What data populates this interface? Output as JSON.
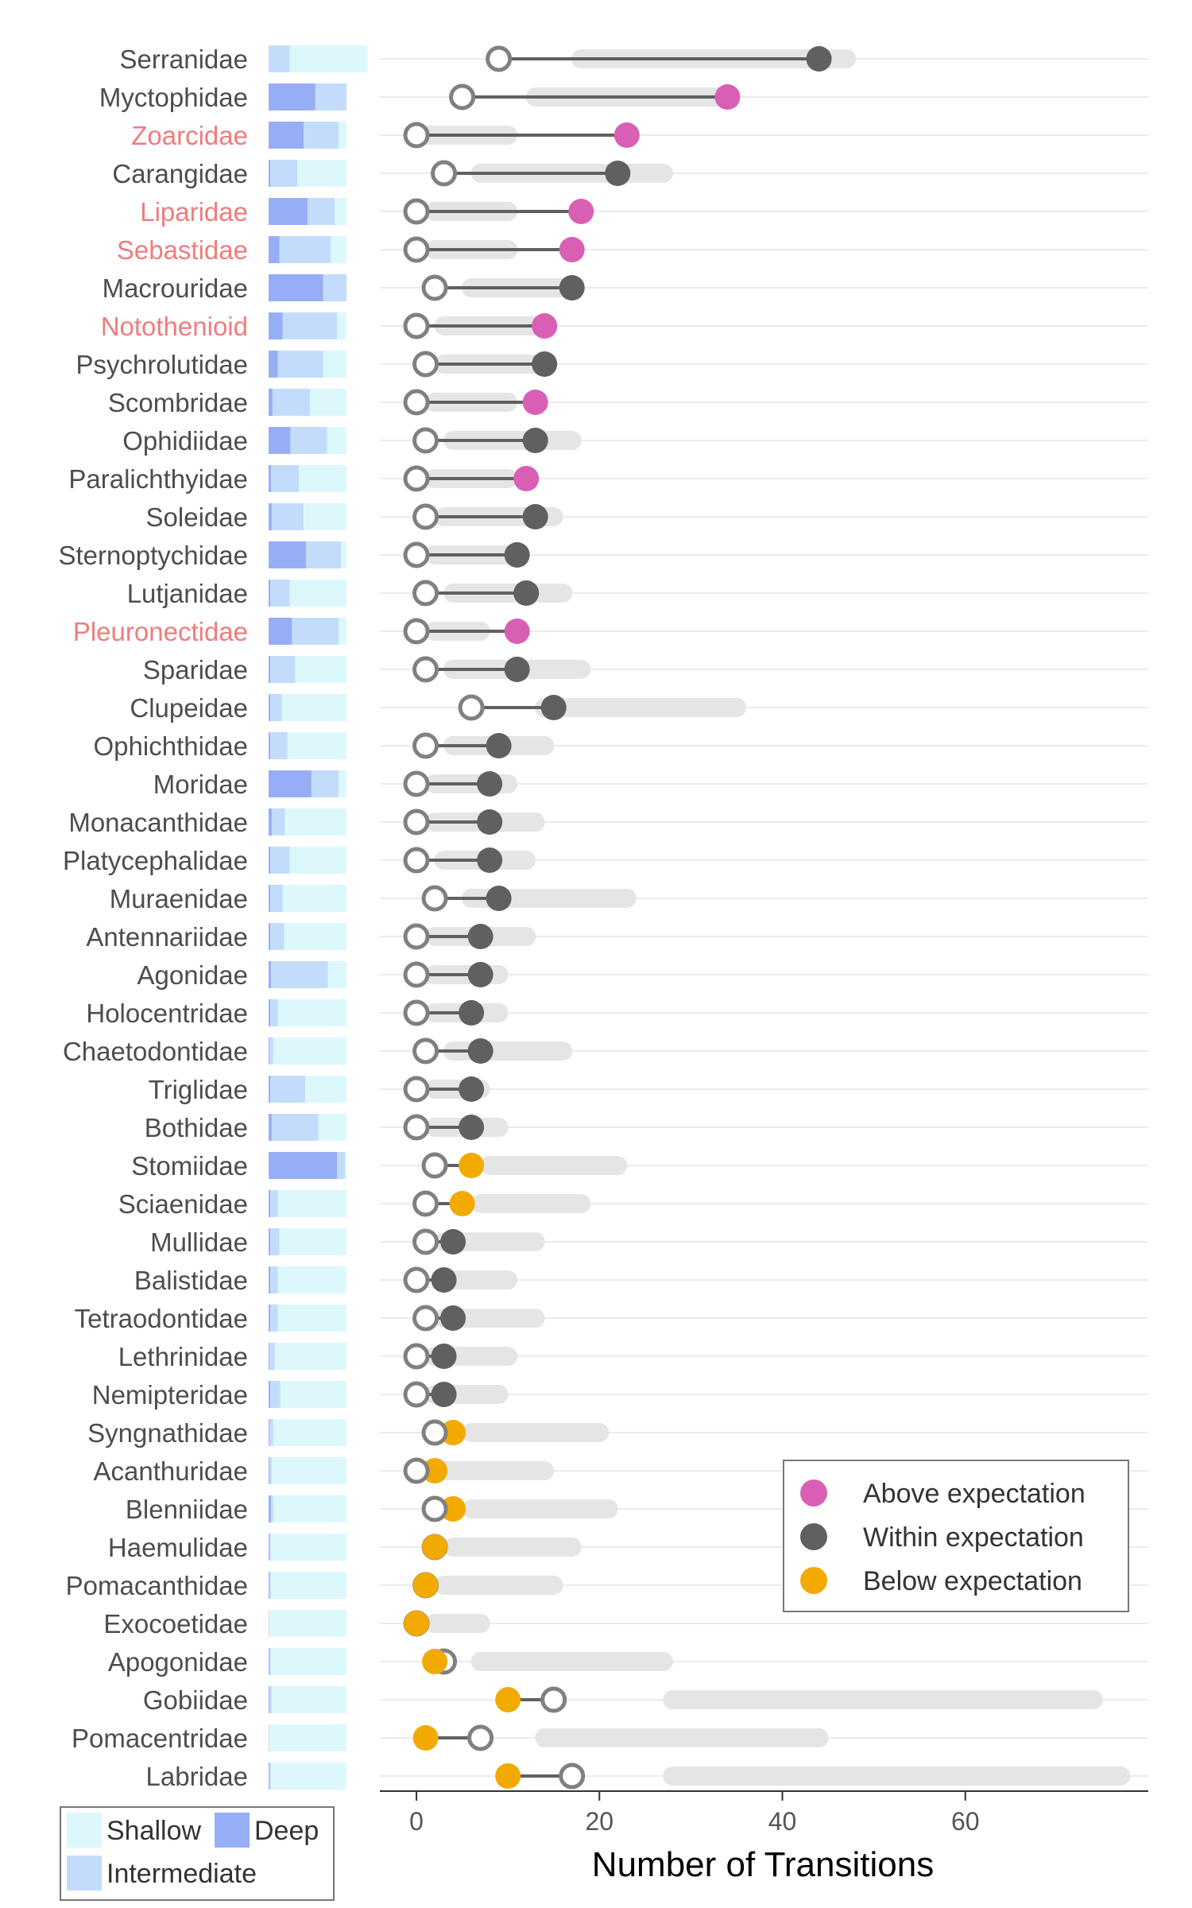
{
  "chart_data": {
    "type": "dumbbell",
    "title": "",
    "xlabel": "Number of Transitions",
    "ylabel": "",
    "xlim": [
      -4,
      80
    ],
    "xticks": [
      0,
      20,
      40,
      60
    ],
    "colors": {
      "above": "#D95FB5",
      "within": "#606060",
      "below": "#F2AA00",
      "highlight_label": "#F07C7C",
      "normal_label": "#4D4D4D",
      "shallow": "#DDF8FD",
      "intermediate": "#C3DCFC",
      "deep": "#96AEF5",
      "range": "#E5E5E5",
      "grid": "#EBEBEB",
      "open_stroke": "#808080"
    },
    "legend": {
      "position": "bottom-right",
      "items": [
        {
          "key": "above",
          "label": "Above expectation"
        },
        {
          "key": "within",
          "label": "Within expectation"
        },
        {
          "key": "below",
          "label": "Below expectation"
        }
      ]
    },
    "depth_legend": {
      "items": [
        {
          "key": "shallow",
          "label": "Shallow"
        },
        {
          "key": "deep",
          "label": "Deep"
        },
        {
          "key": "intermediate",
          "label": "Intermediate"
        }
      ]
    },
    "families": [
      {
        "name": "Serranidae",
        "highlight": false,
        "expected": 9,
        "observed": 44,
        "status": "within",
        "range": [
          18,
          47
        ],
        "depth": [
          0,
          0.27,
          1
        ]
      },
      {
        "name": "Myctophidae",
        "highlight": false,
        "expected": 5,
        "observed": 34,
        "status": "above",
        "range": [
          13,
          33
        ],
        "depth": [
          0.6,
          0.4,
          0
        ]
      },
      {
        "name": "Zoarcidae",
        "highlight": true,
        "expected": 0,
        "observed": 23,
        "status": "above",
        "range": [
          0,
          10
        ],
        "depth": [
          0.45,
          0.45,
          0.1
        ]
      },
      {
        "name": "Carangidae",
        "highlight": false,
        "expected": 3,
        "observed": 22,
        "status": "within",
        "range": [
          7,
          27
        ],
        "depth": [
          0.02,
          0.35,
          0.63
        ]
      },
      {
        "name": "Liparidae",
        "highlight": true,
        "expected": 0,
        "observed": 18,
        "status": "above",
        "range": [
          2,
          10
        ],
        "depth": [
          0.5,
          0.35,
          0.15
        ]
      },
      {
        "name": "Sebastidae",
        "highlight": true,
        "expected": 0,
        "observed": 17,
        "status": "above",
        "range": [
          2,
          10
        ],
        "depth": [
          0.14,
          0.66,
          0.2
        ]
      },
      {
        "name": "Macrouridae",
        "highlight": false,
        "expected": 2,
        "observed": 17,
        "status": "within",
        "range": [
          6,
          16
        ],
        "depth": [
          0.7,
          0.3,
          0
        ]
      },
      {
        "name": "Notothenioid",
        "highlight": true,
        "expected": 0,
        "observed": 14,
        "status": "above",
        "range": [
          3,
          13
        ],
        "depth": [
          0.18,
          0.7,
          0.12
        ]
      },
      {
        "name": "Psychrolutidae",
        "highlight": false,
        "expected": 1,
        "observed": 14,
        "status": "within",
        "range": [
          3,
          13
        ],
        "depth": [
          0.12,
          0.58,
          0.3
        ]
      },
      {
        "name": "Scombridae",
        "highlight": false,
        "expected": 0,
        "observed": 13,
        "status": "above",
        "range": [
          2,
          10
        ],
        "depth": [
          0.05,
          0.48,
          0.47
        ]
      },
      {
        "name": "Ophidiidae",
        "highlight": false,
        "expected": 1,
        "observed": 13,
        "status": "within",
        "range": [
          4,
          17
        ],
        "depth": [
          0.28,
          0.47,
          0.25
        ]
      },
      {
        "name": "Paralichthyidae",
        "highlight": false,
        "expected": 0,
        "observed": 12,
        "status": "above",
        "range": [
          2,
          10
        ],
        "depth": [
          0.03,
          0.36,
          0.61
        ]
      },
      {
        "name": "Soleidae",
        "highlight": false,
        "expected": 1,
        "observed": 13,
        "status": "within",
        "range": [
          3,
          15
        ],
        "depth": [
          0.04,
          0.41,
          0.55
        ]
      },
      {
        "name": "Sternoptychidae",
        "highlight": false,
        "expected": 0,
        "observed": 11,
        "status": "within",
        "range": [
          2,
          11
        ],
        "depth": [
          0.48,
          0.45,
          0.07
        ]
      },
      {
        "name": "Lutjanidae",
        "highlight": false,
        "expected": 1,
        "observed": 12,
        "status": "within",
        "range": [
          4,
          16
        ],
        "depth": [
          0.02,
          0.25,
          0.73
        ]
      },
      {
        "name": "Pleuronectidae",
        "highlight": true,
        "expected": 0,
        "observed": 11,
        "status": "above",
        "range": [
          2,
          7
        ],
        "depth": [
          0.3,
          0.6,
          0.1
        ]
      },
      {
        "name": "Sparidae",
        "highlight": false,
        "expected": 1,
        "observed": 11,
        "status": "within",
        "range": [
          4,
          18
        ],
        "depth": [
          0.02,
          0.32,
          0.66
        ]
      },
      {
        "name": "Clupeidae",
        "highlight": false,
        "expected": 6,
        "observed": 15,
        "status": "within",
        "range": [
          14,
          35
        ],
        "depth": [
          0.02,
          0.15,
          0.83
        ]
      },
      {
        "name": "Ophichthidae",
        "highlight": false,
        "expected": 1,
        "observed": 9,
        "status": "within",
        "range": [
          4,
          14
        ],
        "depth": [
          0.02,
          0.22,
          0.76
        ]
      },
      {
        "name": "Moridae",
        "highlight": false,
        "expected": 0,
        "observed": 8,
        "status": "within",
        "range": [
          2,
          10
        ],
        "depth": [
          0.55,
          0.35,
          0.1
        ]
      },
      {
        "name": "Monacanthidae",
        "highlight": false,
        "expected": 0,
        "observed": 8,
        "status": "within",
        "range": [
          2,
          13
        ],
        "depth": [
          0.04,
          0.17,
          0.79
        ]
      },
      {
        "name": "Platycephalidae",
        "highlight": false,
        "expected": 0,
        "observed": 8,
        "status": "within",
        "range": [
          3,
          12
        ],
        "depth": [
          0.02,
          0.25,
          0.73
        ]
      },
      {
        "name": "Muraenidae",
        "highlight": false,
        "expected": 2,
        "observed": 9,
        "status": "within",
        "range": [
          6,
          23
        ],
        "depth": [
          0.02,
          0.16,
          0.82
        ]
      },
      {
        "name": "Antennariidae",
        "highlight": false,
        "expected": 0,
        "observed": 7,
        "status": "within",
        "range": [
          2,
          12
        ],
        "depth": [
          0.02,
          0.18,
          0.8
        ]
      },
      {
        "name": "Agonidae",
        "highlight": false,
        "expected": 0,
        "observed": 7,
        "status": "within",
        "range": [
          2,
          9
        ],
        "depth": [
          0.03,
          0.73,
          0.24
        ]
      },
      {
        "name": "Holocentridae",
        "highlight": false,
        "expected": 0,
        "observed": 6,
        "status": "within",
        "range": [
          2,
          9
        ],
        "depth": [
          0.02,
          0.1,
          0.88
        ]
      },
      {
        "name": "Chaetodontidae",
        "highlight": false,
        "expected": 1,
        "observed": 7,
        "status": "within",
        "range": [
          4,
          16
        ],
        "depth": [
          0.01,
          0.05,
          0.94
        ]
      },
      {
        "name": "Triglidae",
        "highlight": false,
        "expected": 0,
        "observed": 6,
        "status": "within",
        "range": [
          2,
          7
        ],
        "depth": [
          0.02,
          0.45,
          0.53
        ]
      },
      {
        "name": "Bothidae",
        "highlight": false,
        "expected": 0,
        "observed": 6,
        "status": "within",
        "range": [
          2,
          9
        ],
        "depth": [
          0.04,
          0.6,
          0.36
        ]
      },
      {
        "name": "Stomiidae",
        "highlight": false,
        "expected": 2,
        "observed": 6,
        "status": "below",
        "range": [
          8,
          22
        ],
        "depth": [
          0.88,
          0.1,
          0.02
        ]
      },
      {
        "name": "Sciaenidae",
        "highlight": false,
        "expected": 1,
        "observed": 5,
        "status": "below",
        "range": [
          7,
          18
        ],
        "depth": [
          0.02,
          0.1,
          0.88
        ]
      },
      {
        "name": "Mullidae",
        "highlight": false,
        "expected": 1,
        "observed": 4,
        "status": "within",
        "range": [
          3,
          13
        ],
        "depth": [
          0.02,
          0.12,
          0.86
        ]
      },
      {
        "name": "Balistidae",
        "highlight": false,
        "expected": 0,
        "observed": 3,
        "status": "within",
        "range": [
          3,
          10
        ],
        "depth": [
          0.02,
          0.1,
          0.88
        ]
      },
      {
        "name": "Tetraodontidae",
        "highlight": false,
        "expected": 1,
        "observed": 4,
        "status": "within",
        "range": [
          3,
          13
        ],
        "depth": [
          0.02,
          0.1,
          0.88
        ]
      },
      {
        "name": "Lethrinidae",
        "highlight": false,
        "expected": 0,
        "observed": 3,
        "status": "within",
        "range": [
          2,
          10
        ],
        "depth": [
          0.01,
          0.07,
          0.92
        ]
      },
      {
        "name": "Nemipteridae",
        "highlight": false,
        "expected": 0,
        "observed": 3,
        "status": "within",
        "range": [
          2,
          9
        ],
        "depth": [
          0.02,
          0.13,
          0.85
        ]
      },
      {
        "name": "Syngnathidae",
        "highlight": false,
        "expected": 2,
        "observed": 4,
        "status": "below",
        "range": [
          6,
          20
        ],
        "depth": [
          0.01,
          0.05,
          0.94
        ]
      },
      {
        "name": "Acanthuridae",
        "highlight": false,
        "expected": 0,
        "observed": 2,
        "status": "below",
        "range": [
          3,
          14
        ],
        "depth": [
          0.01,
          0.03,
          0.96
        ]
      },
      {
        "name": "Blenniidae",
        "highlight": false,
        "expected": 2,
        "observed": 4,
        "status": "below",
        "range": [
          6,
          21
        ],
        "depth": [
          0.03,
          0.03,
          0.94
        ]
      },
      {
        "name": "Haemulidae",
        "highlight": false,
        "expected": 2,
        "observed": 2,
        "status": "below",
        "range": [
          4,
          17
        ],
        "depth": [
          0.01,
          0.02,
          0.97
        ]
      },
      {
        "name": "Pomacanthidae",
        "highlight": false,
        "expected": 1,
        "observed": 1,
        "status": "below",
        "range": [
          3,
          15
        ],
        "depth": [
          0.01,
          0.02,
          0.97
        ]
      },
      {
        "name": "Exocoetidae",
        "highlight": false,
        "expected": 0,
        "observed": 0,
        "status": "below",
        "range": [
          2,
          7
        ],
        "depth": [
          0,
          0.01,
          0.99
        ]
      },
      {
        "name": "Apogonidae",
        "highlight": false,
        "expected": 3,
        "observed": 2,
        "status": "below",
        "range": [
          7,
          27
        ],
        "depth": [
          0.01,
          0.02,
          0.97
        ]
      },
      {
        "name": "Gobiidae",
        "highlight": false,
        "expected": 15,
        "observed": 10,
        "status": "below",
        "range": [
          28,
          74
        ],
        "depth": [
          0.01,
          0.03,
          0.96
        ]
      },
      {
        "name": "Pomacentridae",
        "highlight": false,
        "expected": 7,
        "observed": 1,
        "status": "below",
        "range": [
          14,
          44
        ],
        "depth": [
          0,
          0.01,
          0.99
        ]
      },
      {
        "name": "Labridae",
        "highlight": false,
        "expected": 17,
        "observed": 10,
        "status": "below",
        "range": [
          28,
          77
        ],
        "depth": [
          0.01,
          0.02,
          0.97
        ]
      }
    ]
  }
}
